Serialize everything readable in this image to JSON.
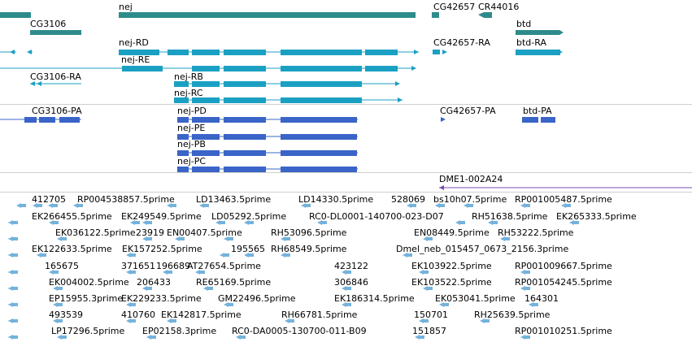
{
  "colors": {
    "gene": "#2e8b8b",
    "transcript": "#1aa0c2",
    "protein": "#3a64c8",
    "dme": "#7b4bb0",
    "est": "#74b2dc",
    "separator": "#cfcfcf"
  },
  "tracks": {
    "genes": {
      "labels": [
        "nej",
        "CG42657",
        "CR44016",
        "CG3106",
        "btd"
      ]
    },
    "transcripts": {
      "labels": [
        "nej-RD",
        "CG42657-RA",
        "btd-RA",
        "nej-RE",
        "CG3106-RA",
        "nej-RB",
        "nej-RC"
      ]
    },
    "proteins": {
      "labels": [
        "CG3106-PA",
        "nej-PD",
        "CG42657-PA",
        "btd-PA",
        "nej-PE",
        "nej-PB",
        "nej-PC"
      ]
    },
    "dme": {
      "labels": [
        "DME1-002A24"
      ]
    },
    "ests": {
      "rows": [
        [
          "412705",
          "RP004538857.5prime",
          "LD13463.5prime",
          "LD14330.5prime",
          "528069",
          "bs10h07.5prime",
          "RP001005487.5prime"
        ],
        [
          "EK266455.5prime",
          "EK249549.5prime",
          "LD05292.5prime",
          "RC0-DL0001-140700-023-D07",
          "RH51638.5prime",
          "EK265333.5prime"
        ],
        [
          "EK036122.5prime",
          "23919",
          "EN00407.5prime",
          "RH53096.5prime",
          "EN08449.5prime",
          "RH53222.5prime"
        ],
        [
          "EK122633.5prime",
          "EK157252.5prime",
          "195565",
          "RH68549.5prime",
          "Dmel_neb_015457_0673_2156.3prime"
        ],
        [
          "165675",
          "371651",
          "196689",
          "AT27654.5prime",
          "423122",
          "EK103922.5prime",
          "RP001009667.5prime"
        ],
        [
          "EK004002.5prime",
          "206433",
          "RE65169.5prime",
          "306846",
          "EK103522.5prime",
          "RP001054245.5prime"
        ],
        [
          "EP15955.3prime",
          "EK229233.5prime",
          "GM22496.5prime",
          "EK186314.5prime",
          "EK053041.5prime",
          "164301"
        ],
        [
          "493539",
          "410760",
          "EK142817.5prime",
          "RH66781.5prime",
          "150701",
          "RH25639.5prime"
        ],
        [
          "LP17296.5prime",
          "EP02158.3prime",
          "RC0-DA0005-130700-011-B09",
          "151857",
          "RP001010251.5prime"
        ]
      ]
    }
  }
}
